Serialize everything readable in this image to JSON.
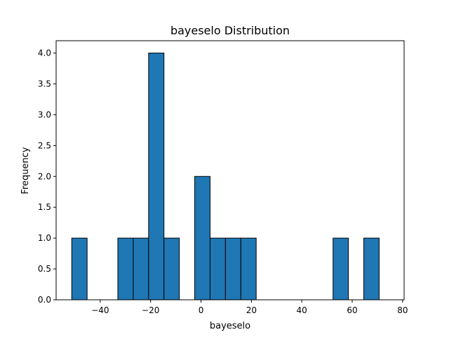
{
  "chart_data": {
    "type": "bar",
    "title": "bayeselo Distribution",
    "xlabel": "bayeselo",
    "ylabel": "Frequency",
    "bin_edges": [
      -51.3,
      -45.2,
      -39.1,
      -33.0,
      -26.9,
      -20.8,
      -14.7,
      -8.6,
      -2.5,
      3.6,
      9.7,
      15.8,
      21.9,
      28.0,
      34.1,
      40.2,
      46.3,
      52.4,
      58.5,
      64.6,
      70.7
    ],
    "counts": [
      1,
      0,
      0,
      1,
      1,
      4,
      1,
      0,
      2,
      1,
      1,
      1,
      0,
      0,
      0,
      0,
      0,
      1,
      0,
      1
    ],
    "xlim": [
      -57.5,
      80.6
    ],
    "ylim": [
      0,
      4.2
    ],
    "x_ticks": [
      -40,
      -20,
      0,
      20,
      40,
      60,
      80
    ],
    "x_tick_labels": [
      "−40",
      "−20",
      "0",
      "20",
      "40",
      "60",
      "80"
    ],
    "y_ticks": [
      0.0,
      0.5,
      1.0,
      1.5,
      2.0,
      2.5,
      3.0,
      3.5,
      4.0
    ],
    "y_tick_labels": [
      "0.0",
      "0.5",
      "1.0",
      "1.5",
      "2.0",
      "2.5",
      "3.0",
      "3.5",
      "4.0"
    ],
    "grid": false,
    "colors": {
      "bar_fill": "#1f77b4",
      "bar_edge": "#000000"
    }
  }
}
